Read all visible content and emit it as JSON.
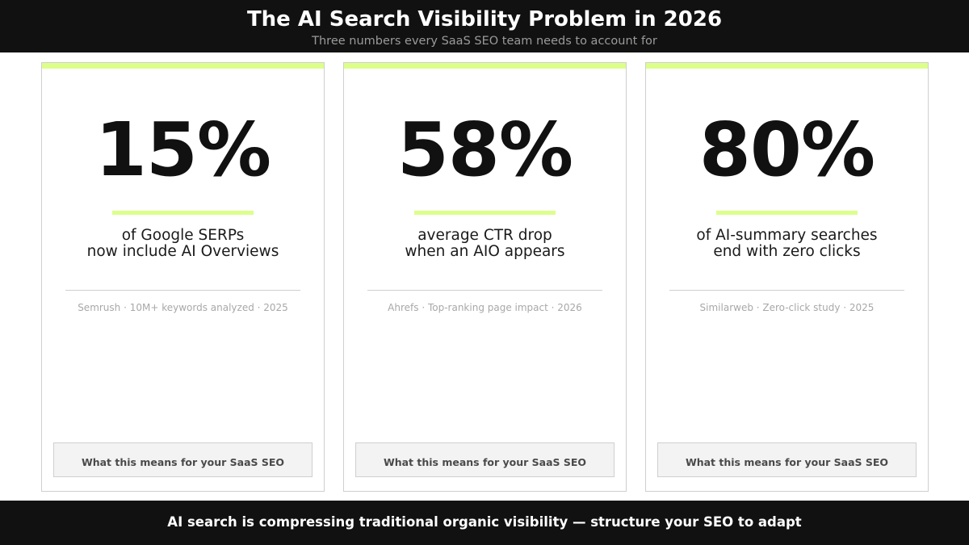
{
  "header": {
    "title": "The AI Search Visibility Problem in 2026",
    "subtitle": "Three numbers every SaaS SEO team needs to account for"
  },
  "colors": {
    "accent": "#dcff8a",
    "dark": "#111111",
    "card_border": "#cfcfcf",
    "cta_background": "#f3f3f3"
  },
  "cards": [
    {
      "stat": "15%",
      "desc_line1": "of Google SERPs",
      "desc_line2": "now include AI Overviews",
      "source": "Semrush · 10M+ keywords analyzed · 2025",
      "cta": "What this means for your SaaS SEO"
    },
    {
      "stat": "58%",
      "desc_line1": "average CTR drop",
      "desc_line2": "when an AIO appears",
      "source": "Ahrefs · Top-ranking page impact · 2026",
      "cta": "What this means for your SaaS SEO"
    },
    {
      "stat": "80%",
      "desc_line1": "of AI-summary searches",
      "desc_line2": "end with zero clicks",
      "source": "Similarweb · Zero-click study · 2025",
      "cta": "What this means for your SaaS SEO"
    }
  ],
  "footer": {
    "text": "AI search is compressing traditional organic visibility — structure your SEO to adapt"
  }
}
